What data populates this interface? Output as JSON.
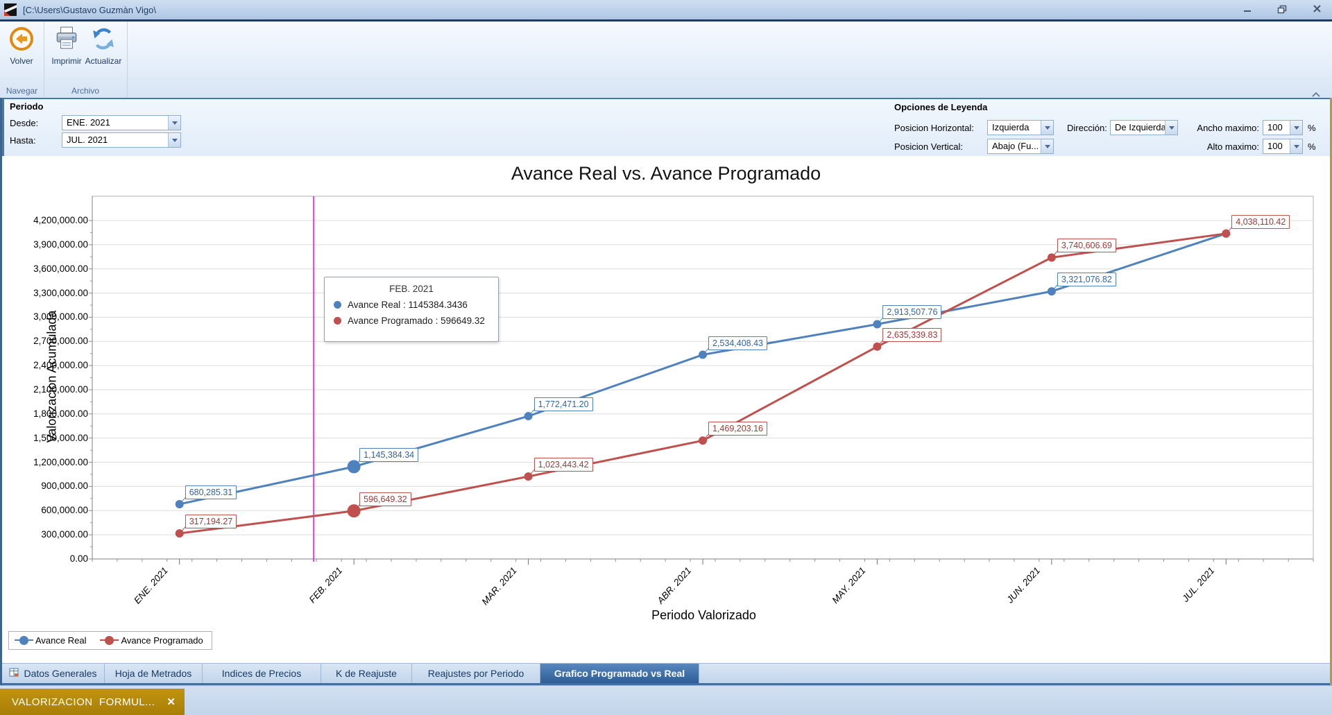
{
  "window": {
    "title": "[C:\\Users\\Gustavo Guzmàn Vigo\\",
    "controls": [
      "minimize",
      "restore",
      "close"
    ]
  },
  "ribbon": {
    "buttons": [
      {
        "label": "Volver",
        "icon": "back-icon"
      },
      {
        "label": "Imprimir",
        "icon": "printer-icon"
      },
      {
        "label": "Actualizar",
        "icon": "refresh-icon"
      }
    ],
    "groups": [
      "Navegar",
      "Archivo"
    ]
  },
  "filters": {
    "periodo": {
      "title": "Periodo",
      "desde_label": "Desde:",
      "desde_value": "ENE. 2021",
      "hasta_label": "Hasta:",
      "hasta_value": "JUL. 2021"
    },
    "leyenda": {
      "title": "Opciones de Leyenda",
      "posicion_horizontal_label": "Posicion Horizontal:",
      "posicion_horizontal_value": "Izquierda",
      "direccion_label": "Dirección:",
      "direccion_value": "De Izquierda...",
      "ancho_label": "Ancho maximo:",
      "ancho_value": "100",
      "posicion_vertical_label": "Posicion Vertical:",
      "posicion_vertical_value": "Abajo (Fu...",
      "alto_label": "Alto maximo:",
      "alto_value": "100",
      "percent": "%"
    }
  },
  "chart_data": {
    "type": "line",
    "title": "Avance Real vs. Avance Programado",
    "xlabel": "Periodo Valorizado",
    "ylabel": "Valorizacion Acumulada",
    "categories": [
      "ENE. 2021",
      "FEB. 2021",
      "MAR. 2021",
      "ABR. 2021",
      "MAY. 2021",
      "JUN. 2021",
      "JUL. 2021"
    ],
    "series": [
      {
        "name": "Avance Real",
        "color": "#4f81bd",
        "label_color": "#35639f",
        "values": [
          680285.31,
          1145384.34,
          1772471.2,
          2534408.43,
          2913507.76,
          3321076.82,
          4038110.42
        ],
        "labels": [
          "680,285.31",
          "1,145,384.34",
          "1,772,471.20",
          "2,534,408.43",
          "2,913,507.76",
          "3,321,076.82",
          null
        ]
      },
      {
        "name": "Avance Programado",
        "color": "#c0504d",
        "label_color": "#9e3a38",
        "values": [
          317194.27,
          596649.32,
          1023443.42,
          1469203.16,
          2635339.83,
          3740606.69,
          4038110.42
        ],
        "labels": [
          "317,194.27",
          "596,649.32",
          "1,023,443.42",
          "1,469,203.16",
          "2,635,339.83",
          "3,740,606.69",
          "4,038,110.42"
        ]
      }
    ],
    "ylim": [
      0,
      4500000
    ],
    "ytick_step": 300000,
    "ytick_max": 4200000,
    "grid": true,
    "legend_position": "bottom-left",
    "highlighted_category_index": 1,
    "crosshair_frac": 0.18125,
    "crosshair_color": "#ff00ff"
  },
  "tooltip": {
    "title": "FEB. 2021",
    "rows": [
      {
        "label": "Avance Real : 1145384.3436"
      },
      {
        "label": "Avance Programado : 596649.32"
      }
    ]
  },
  "tabs": {
    "items": [
      {
        "label": "Datos Generales"
      },
      {
        "label": "Hoja de Metrados"
      },
      {
        "label": "Indices de Precios"
      },
      {
        "label": "K de Reajuste"
      },
      {
        "label": "Reajustes por Periodo"
      },
      {
        "label": "Grafico Programado vs Real"
      }
    ]
  },
  "taskbar": {
    "document_tab": "VALORIZACION  FORMUL...",
    "close_glyph": "✕"
  }
}
